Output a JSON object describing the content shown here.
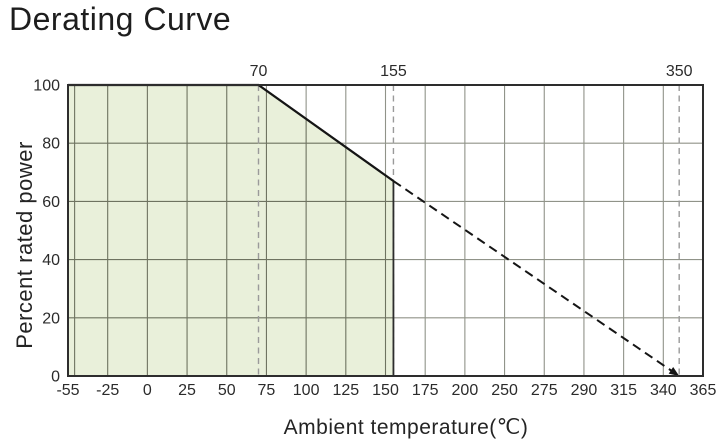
{
  "chart_data": {
    "type": "area",
    "title": "Derating Curve",
    "xlabel": "Ambient temperature(℃)",
    "ylabel": "Percent rated power",
    "xlim": [
      -55,
      365
    ],
    "ylim": [
      0,
      100
    ],
    "grid": true,
    "x_ticks": [
      {
        "value": -55,
        "label": "-55"
      },
      {
        "value": -25,
        "label": "-25"
      },
      {
        "value": 0,
        "label": "0"
      },
      {
        "value": 25,
        "label": "25"
      },
      {
        "value": 50,
        "label": "50"
      },
      {
        "value": 75,
        "label": "75"
      },
      {
        "value": 100,
        "label": "100"
      },
      {
        "value": 125,
        "label": "125"
      },
      {
        "value": 150,
        "label": "150"
      },
      {
        "value": 175,
        "label": "175"
      },
      {
        "value": 200,
        "label": "200"
      },
      {
        "value": 250,
        "label": "250"
      },
      {
        "value": 275,
        "label": "275"
      },
      {
        "value": 290,
        "label": "290"
      },
      {
        "value": 315,
        "label": "315"
      },
      {
        "value": 340,
        "label": "340"
      },
      {
        "value": 365,
        "label": "365"
      }
    ],
    "extra_x_gridlines": [
      -50
    ],
    "y_ticks": [
      {
        "value": 0,
        "label": "0"
      },
      {
        "value": 20,
        "label": "20"
      },
      {
        "value": 40,
        "label": "40"
      },
      {
        "value": 60,
        "label": "60"
      },
      {
        "value": 80,
        "label": "80"
      },
      {
        "value": 100,
        "label": "100"
      }
    ],
    "top_reference_lines": [
      {
        "value": 70,
        "label": "70"
      },
      {
        "value": 155,
        "label": "155"
      },
      {
        "value": 350,
        "label": "350"
      }
    ],
    "derating_curve": {
      "solid_segment": [
        [
          -55,
          100
        ],
        [
          70,
          100
        ],
        [
          155,
          67
        ]
      ],
      "dashed_segment": [
        [
          155,
          67
        ],
        [
          350,
          0
        ]
      ],
      "arrow_at_end": true
    },
    "safe_operating_area": {
      "points": [
        [
          -55,
          0
        ],
        [
          -55,
          100
        ],
        [
          70,
          100
        ],
        [
          155,
          67
        ],
        [
          155,
          0
        ]
      ],
      "fill": "#e9f0da"
    },
    "colors": {
      "area_fill": "#e9f0da",
      "grid": "#909389",
      "grid_in_area": "#6e7360",
      "axis_border": "#2d2d2d",
      "curve": "#151515",
      "reference_dash": "#9a9a9a",
      "text": "#2b2b2b"
    },
    "legend": "none"
  }
}
